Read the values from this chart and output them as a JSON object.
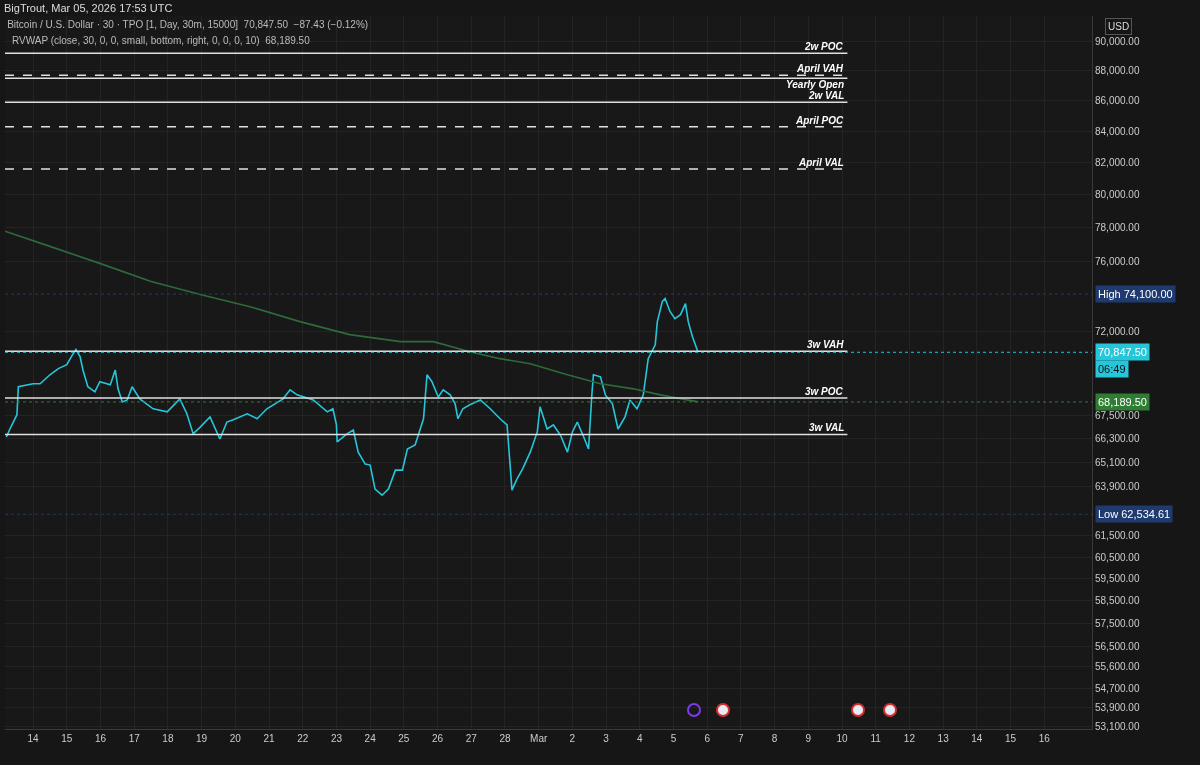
{
  "chart_data": {
    "type": "line",
    "title": "Bitcoin / U.S. Dollar · 30 · TPO [1, Day, 30m, 15000]  70,847.50  −87.43 (−0.12%)",
    "subtitle": "RVWAP (close, 30, 0, 0, small, bottom, right, 0, 0, 0, 10)  68,189.50",
    "ylabel": "USD",
    "annotations": [
      "BigTrout, Mar 05, 2026 17:53 UTC",
      "06:49"
    ],
    "series": [
      {
        "color": "#26c6da",
        "x": [
          "2026-02-13T05:00",
          "2026-02-13T07:30",
          "2026-02-13T12:30",
          "2026-02-13T13:30",
          "2026-02-14T00:00",
          "2026-02-14T05:00",
          "2026-02-14T12:00",
          "2026-02-14T18:00",
          "2026-02-15T00:00",
          "2026-02-15T04:00",
          "2026-02-15T06:30",
          "2026-02-15T09:30",
          "2026-02-15T11:30",
          "2026-02-15T15:00",
          "2026-02-15T20:00",
          "2026-02-15T23:30",
          "2026-02-16T07:00",
          "2026-02-16T10:30",
          "2026-02-16T12:30",
          "2026-02-16T15:30",
          "2026-02-16T19:00",
          "2026-02-16T22:30",
          "2026-02-17T04:00",
          "2026-02-17T13:30",
          "2026-02-17T23:30",
          "2026-02-18T08:30",
          "2026-02-18T13:30",
          "2026-02-18T18:00",
          "2026-02-18T23:00",
          "2026-02-19T06:00",
          "2026-02-19T13:00",
          "2026-02-19T18:00",
          "2026-02-19T22:30",
          "2026-02-20T08:30",
          "2026-02-20T15:30",
          "2026-02-20T22:30",
          "2026-02-21T10:00",
          "2026-02-21T15:00",
          "2026-02-21T20:00",
          "2026-02-22T07:30",
          "2026-02-22T17:30",
          "2026-02-22T21:30",
          "2026-02-23T00:00",
          "2026-02-23T00:30",
          "2026-02-23T07:30",
          "2026-02-23T12:00",
          "2026-02-23T15:30",
          "2026-02-23T20:30",
          "2026-02-24T00:00",
          "2026-02-24T03:30",
          "2026-02-24T08:30",
          "2026-02-24T13:00",
          "2026-02-24T18:00",
          "2026-02-24T23:00",
          "2026-02-25T02:30",
          "2026-02-25T08:00",
          "2026-02-25T14:00",
          "2026-02-25T16:30",
          "2026-02-25T20:00",
          "2026-02-26T00:30",
          "2026-02-26T04:00",
          "2026-02-26T09:00",
          "2026-02-26T12:30",
          "2026-02-26T14:30",
          "2026-02-26T18:00",
          "2026-02-26T23:00",
          "2026-02-27T06:30",
          "2026-02-27T13:30",
          "2026-02-27T20:30",
          "2026-02-28T01:30",
          "2026-02-28T05:00",
          "2026-02-28T08:30",
          "2026-02-28T12:30",
          "2026-02-28T18:00",
          "2026-02-28T23:00",
          "2026-03-01T01:00",
          "2026-03-01T06:00",
          "2026-03-01T10:30",
          "2026-03-01T15:30",
          "2026-03-01T20:30",
          "2026-03-02T00:00",
          "2026-03-02T03:30",
          "2026-03-02T07:30",
          "2026-03-02T11:30",
          "2026-03-02T14:00",
          "2026-03-02T15:00",
          "2026-03-02T20:00",
          "2026-03-02T23:30",
          "2026-03-03T04:30",
          "2026-03-03T08:30",
          "2026-03-03T13:30",
          "2026-03-03T17:00",
          "2026-03-03T22:00",
          "2026-03-04T02:30",
          "2026-03-04T06:00",
          "2026-03-04T11:00",
          "2026-03-04T12:30",
          "2026-03-04T16:00",
          "2026-03-04T18:00",
          "2026-03-04T21:30",
          "2026-03-05T01:00",
          "2026-03-05T05:00",
          "2026-03-05T08:30",
          "2026-03-05T10:30",
          "2026-03-05T13:30",
          "2026-03-05T17:30"
        ],
        "values": [
          66370,
          66780,
          67520,
          68990,
          69150,
          69150,
          69630,
          69960,
          70170,
          70710,
          71000,
          70600,
          69890,
          68990,
          68720,
          69260,
          69100,
          69890,
          68880,
          68190,
          68290,
          68990,
          68350,
          67830,
          67670,
          68350,
          67570,
          66530,
          66880,
          67410,
          66270,
          67140,
          67260,
          67570,
          67310,
          67830,
          68350,
          68830,
          68560,
          68290,
          67670,
          67830,
          66990,
          66120,
          66530,
          66730,
          65600,
          65000,
          64950,
          63760,
          63460,
          63760,
          64700,
          64700,
          65760,
          65960,
          67310,
          69630,
          69260,
          68450,
          68830,
          68560,
          68090,
          67310,
          67830,
          68040,
          68290,
          67830,
          67310,
          66990,
          63710,
          64250,
          64750,
          65600,
          66630,
          67930,
          66780,
          66990,
          66470,
          65600,
          66630,
          67140,
          66470,
          65760,
          68720,
          69630,
          69520,
          68560,
          68090,
          66780,
          67410,
          68290,
          67830,
          68560,
          70500,
          71260,
          72540,
          73670,
          73840,
          73110,
          72710,
          72930,
          73550,
          72540,
          71700,
          70847.5
        ]
      },
      {
        "color": "#2e6b3a",
        "x": [
          "2026-02-13T04:00",
          "2026-02-14T12:00",
          "2026-02-15T23:30",
          "2026-02-17T11:30",
          "2026-02-18T23:00",
          "2026-02-20T10:30",
          "2026-02-21T22:00",
          "2026-02-23T09:30",
          "2026-02-24T21:30",
          "2026-02-25T21:00",
          "2026-02-26T23:00",
          "2026-02-27T20:30",
          "2026-02-28T18:00",
          "2026-03-01T20:30",
          "2026-03-02T20:00",
          "2026-03-03T19:30",
          "2026-03-04T14:30",
          "2026-03-05T17:30"
        ],
        "values": [
          77770,
          76870,
          75870,
          74830,
          74070,
          73380,
          72540,
          71820,
          71430,
          71430,
          70880,
          70500,
          70220,
          69630,
          69150,
          68880,
          68560,
          68189.5
        ]
      }
    ],
    "ref_lines": [
      {
        "axis": "y",
        "value": 89200,
        "label": "2w POC",
        "color": "#e0e0e0",
        "line_style": "solid"
      },
      {
        "axis": "y",
        "value": 87700,
        "label": "April VAH",
        "color": "#e0e0e0",
        "line_style": "dashed"
      },
      {
        "axis": "y",
        "value": 87500,
        "label": "Yearly Open",
        "color": "#e0e0e0",
        "line_style": "solid"
      },
      {
        "axis": "y",
        "value": 85900,
        "label": "2w VAL",
        "color": "#e0e0e0",
        "line_style": "solid"
      },
      {
        "axis": "y",
        "value": 84300,
        "label": "April POC",
        "color": "#e0e0e0",
        "line_style": "dashed"
      },
      {
        "axis": "y",
        "value": 81600,
        "label": "April VAL",
        "color": "#e0e0e0",
        "line_style": "dashed"
      },
      {
        "axis": "y",
        "value": 70900,
        "label": "3w VAH",
        "color": "#e0e0e0",
        "line_style": "solid"
      },
      {
        "axis": "y",
        "value": 68400,
        "label": "3w POC",
        "color": "#e0e0e0",
        "line_style": "solid"
      },
      {
        "axis": "y",
        "value": 66500,
        "label": "3w VAL",
        "color": "#e0e0e0",
        "line_style": "solid"
      },
      {
        "axis": "y",
        "value": 74100,
        "label": "High 74,100.00",
        "color": "#1e3a6e",
        "line_style": "dotted"
      },
      {
        "axis": "y",
        "value": 62534.61,
        "label": "Low 62,534.61",
        "color": "#1e3a6e",
        "line_style": "dotted"
      },
      {
        "axis": "y",
        "value": 70847.5,
        "label": "70,847.50",
        "color": "#26c6da",
        "line_style": "dotted"
      },
      {
        "axis": "y",
        "value": 68189.5,
        "label": "68,189.50",
        "color": "#2e7d32",
        "line_style": "dotted"
      }
    ],
    "xlim": [
      "2026-02-13T04:00",
      "2026-03-17T10:00"
    ],
    "xticks": [
      {
        "value": "2026-02-14",
        "label": "14"
      },
      {
        "value": "2026-02-15",
        "label": "15"
      },
      {
        "value": "2026-02-16",
        "label": "16"
      },
      {
        "value": "2026-02-17",
        "label": "17"
      },
      {
        "value": "2026-02-18",
        "label": "18"
      },
      {
        "value": "2026-02-19",
        "label": "19"
      },
      {
        "value": "2026-02-20",
        "label": "20"
      },
      {
        "value": "2026-02-21",
        "label": "21"
      },
      {
        "value": "2026-02-22",
        "label": "22"
      },
      {
        "value": "2026-02-23",
        "label": "23"
      },
      {
        "value": "2026-02-24",
        "label": "24"
      },
      {
        "value": "2026-02-25",
        "label": "25"
      },
      {
        "value": "2026-02-26",
        "label": "26"
      },
      {
        "value": "2026-02-27",
        "label": "27"
      },
      {
        "value": "2026-02-28",
        "label": "28"
      },
      {
        "value": "2026-03-01",
        "label": "Mar"
      },
      {
        "value": "2026-03-02",
        "label": "2"
      },
      {
        "value": "2026-03-03",
        "label": "3"
      },
      {
        "value": "2026-03-04",
        "label": "4"
      },
      {
        "value": "2026-03-05",
        "label": "5"
      },
      {
        "value": "2026-03-06",
        "label": "6"
      },
      {
        "value": "2026-03-07",
        "label": "7"
      },
      {
        "value": "2026-03-08",
        "label": "8"
      },
      {
        "value": "2026-03-09",
        "label": "9"
      },
      {
        "value": "2026-03-10",
        "label": "10"
      },
      {
        "value": "2026-03-11",
        "label": "11"
      },
      {
        "value": "2026-03-12",
        "label": "12"
      },
      {
        "value": "2026-03-13",
        "label": "13"
      },
      {
        "value": "2026-03-14",
        "label": "14"
      },
      {
        "value": "2026-03-15",
        "label": "15"
      },
      {
        "value": "2026-03-16",
        "label": "16"
      }
    ],
    "ylim": [
      53000,
      91800
    ],
    "yticks": [
      {
        "value": 53100,
        "label": "53,100.00"
      },
      {
        "value": 53900,
        "label": "53,900.00"
      },
      {
        "value": 54700,
        "label": "54,700.00"
      },
      {
        "value": 55600,
        "label": "55,600.00"
      },
      {
        "value": 56500,
        "label": "56,500.00"
      },
      {
        "value": 57500,
        "label": "57,500.00"
      },
      {
        "value": 58500,
        "label": "58,500.00"
      },
      {
        "value": 59500,
        "label": "59,500.00"
      },
      {
        "value": 60500,
        "label": "60,500.00"
      },
      {
        "value": 61500,
        "label": "61,500.00"
      },
      {
        "value": 63900,
        "label": "63,900.00"
      },
      {
        "value": 65100,
        "label": "65,100.00"
      },
      {
        "value": 66300,
        "label": "66,300.00"
      },
      {
        "value": 67500,
        "label": "67,500.00"
      },
      {
        "value": 72000,
        "label": "72,000.00"
      },
      {
        "value": 76000,
        "label": "76,000.00"
      },
      {
        "value": 78000,
        "label": "78,000.00"
      },
      {
        "value": 80000,
        "label": "80,000.00"
      },
      {
        "value": 82000,
        "label": "82,000.00"
      },
      {
        "value": 84000,
        "label": "84,000.00"
      },
      {
        "value": 86000,
        "label": "86,000.00"
      },
      {
        "value": 88000,
        "label": "88,000.00"
      },
      {
        "value": 90000,
        "label": "90,000.00"
      }
    ],
    "log": true,
    "grid": true,
    "marker": "none",
    "line_style": "solid"
  }
}
